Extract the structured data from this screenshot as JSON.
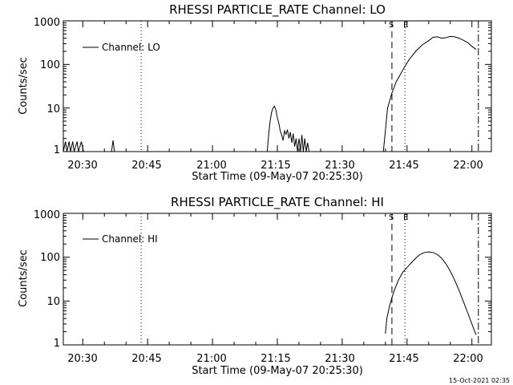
{
  "footer": {
    "timestamp": "15-Oct-2021 02:35"
  },
  "chart_data": [
    {
      "type": "line",
      "title": "RHESSI PARTICLE_RATE Channel: LO",
      "xlabel": "Start Time (09-May-07 20:25:30)",
      "ylabel": "Counts/sec",
      "yscale": "log",
      "ylim": [
        1,
        1000
      ],
      "xlim": [
        "20:25:30",
        "22:04:30"
      ],
      "x_ticks": [
        "20:30",
        "20:45",
        "21:00",
        "21:15",
        "21:30",
        "21:45",
        "22:00"
      ],
      "y_ticks": [
        "1",
        "10",
        "100",
        "1000"
      ],
      "legend": {
        "position": "top-left",
        "entries": [
          "Channel: LO"
        ]
      },
      "grid": false,
      "markers": [
        {
          "time": "20:43:30",
          "style": "dotted",
          "label": ""
        },
        {
          "time": "21:41:30",
          "style": "dashed",
          "label": "S"
        },
        {
          "time": "21:44:30",
          "style": "dotted",
          "label": "E"
        },
        {
          "time": "22:01:30",
          "style": "dashdot",
          "label": ""
        }
      ],
      "series": [
        {
          "name": "Channel: LO",
          "points": [
            [
              "20:25:30",
              1
            ],
            [
              "20:26:00",
              1.7
            ],
            [
              "20:26:20",
              1
            ],
            [
              "20:26:50",
              1.7
            ],
            [
              "20:27:10",
              1
            ],
            [
              "20:27:40",
              1.7
            ],
            [
              "20:28:00",
              1
            ],
            [
              "20:28:40",
              1.7
            ],
            [
              "20:29:00",
              1
            ],
            [
              "20:29:40",
              1.7
            ],
            [
              "20:30:10",
              1
            ],
            [
              "20:36:40",
              1
            ],
            [
              "20:37:00",
              1.8
            ],
            [
              "20:37:20",
              1
            ],
            [
              "21:12:40",
              1
            ],
            [
              "21:13:00",
              2.5
            ],
            [
              "21:13:20",
              5
            ],
            [
              "21:13:40",
              8
            ],
            [
              "21:14:00",
              10
            ],
            [
              "21:14:20",
              11
            ],
            [
              "21:14:40",
              9
            ],
            [
              "21:15:00",
              6
            ],
            [
              "21:15:20",
              4.5
            ],
            [
              "21:15:40",
              3
            ],
            [
              "21:16:00",
              2.4
            ],
            [
              "21:16:20",
              1.8
            ],
            [
              "21:16:40",
              3
            ],
            [
              "21:17:00",
              2.5
            ],
            [
              "21:17:20",
              3.2
            ],
            [
              "21:17:40",
              2
            ],
            [
              "21:18:00",
              2.8
            ],
            [
              "21:18:20",
              1.6
            ],
            [
              "21:18:40",
              2.6
            ],
            [
              "21:19:00",
              1.3
            ],
            [
              "21:19:20",
              2
            ],
            [
              "21:19:40",
              1
            ],
            [
              "21:20:00",
              2
            ],
            [
              "21:20:20",
              1
            ],
            [
              "21:20:40",
              2.4
            ],
            [
              "21:21:00",
              1
            ],
            [
              "21:21:20",
              2
            ],
            [
              "21:21:40",
              1
            ],
            [
              "21:22:00",
              1.6
            ],
            [
              "21:22:20",
              1
            ],
            [
              "21:39:30",
              1
            ],
            [
              "21:40:00",
              3
            ],
            [
              "21:40:30",
              10
            ],
            [
              "21:41:30",
              22
            ],
            [
              "21:42:30",
              40
            ],
            [
              "21:43:30",
              60
            ],
            [
              "21:44:30",
              90
            ],
            [
              "21:45:30",
              130
            ],
            [
              "21:47:00",
              200
            ],
            [
              "21:48:30",
              280
            ],
            [
              "21:50:00",
              350
            ],
            [
              "21:51:00",
              420
            ],
            [
              "21:52:00",
              430
            ],
            [
              "21:53:00",
              400
            ],
            [
              "21:54:00",
              410
            ],
            [
              "21:55:00",
              440
            ],
            [
              "21:56:00",
              430
            ],
            [
              "21:57:00",
              400
            ],
            [
              "21:58:00",
              360
            ],
            [
              "21:59:00",
              320
            ],
            [
              "22:00:00",
              260
            ],
            [
              "22:01:00",
              220
            ]
          ]
        }
      ]
    },
    {
      "type": "line",
      "title": "RHESSI PARTICLE_RATE Channel: HI",
      "xlabel": "Start Time (09-May-07 20:25:30)",
      "ylabel": "Counts/sec",
      "yscale": "log",
      "ylim": [
        1,
        1000
      ],
      "xlim": [
        "20:25:30",
        "22:04:30"
      ],
      "x_ticks": [
        "20:30",
        "20:45",
        "21:00",
        "21:15",
        "21:30",
        "21:45",
        "22:00"
      ],
      "y_ticks": [
        "1",
        "10",
        "100",
        "1000"
      ],
      "legend": {
        "position": "top-left",
        "entries": [
          "Channel: HI"
        ]
      },
      "grid": false,
      "markers": [
        {
          "time": "20:43:30",
          "style": "dotted",
          "label": ""
        },
        {
          "time": "21:41:30",
          "style": "dashed",
          "label": "S"
        },
        {
          "time": "21:44:30",
          "style": "dotted",
          "label": "E"
        },
        {
          "time": "22:01:30",
          "style": "dashdot",
          "label": ""
        }
      ],
      "series": [
        {
          "name": "Channel: HI",
          "points": [
            [
              "21:40:00",
              1.8
            ],
            [
              "21:40:20",
              4
            ],
            [
              "21:41:00",
              8
            ],
            [
              "21:42:00",
              17
            ],
            [
              "21:43:00",
              30
            ],
            [
              "21:44:00",
              45
            ],
            [
              "21:45:00",
              58
            ],
            [
              "21:46:00",
              75
            ],
            [
              "21:47:00",
              95
            ],
            [
              "21:48:00",
              115
            ],
            [
              "21:49:00",
              128
            ],
            [
              "21:50:00",
              132
            ],
            [
              "21:51:00",
              128
            ],
            [
              "21:52:00",
              115
            ],
            [
              "21:53:00",
              95
            ],
            [
              "21:54:00",
              70
            ],
            [
              "21:55:00",
              48
            ],
            [
              "21:56:00",
              30
            ],
            [
              "21:57:00",
              18
            ],
            [
              "21:58:00",
              10
            ],
            [
              "21:59:00",
              5.5
            ],
            [
              "22:00:00",
              3
            ],
            [
              "22:00:40",
              2
            ],
            [
              "22:01:00",
              1.7
            ]
          ]
        }
      ]
    }
  ]
}
